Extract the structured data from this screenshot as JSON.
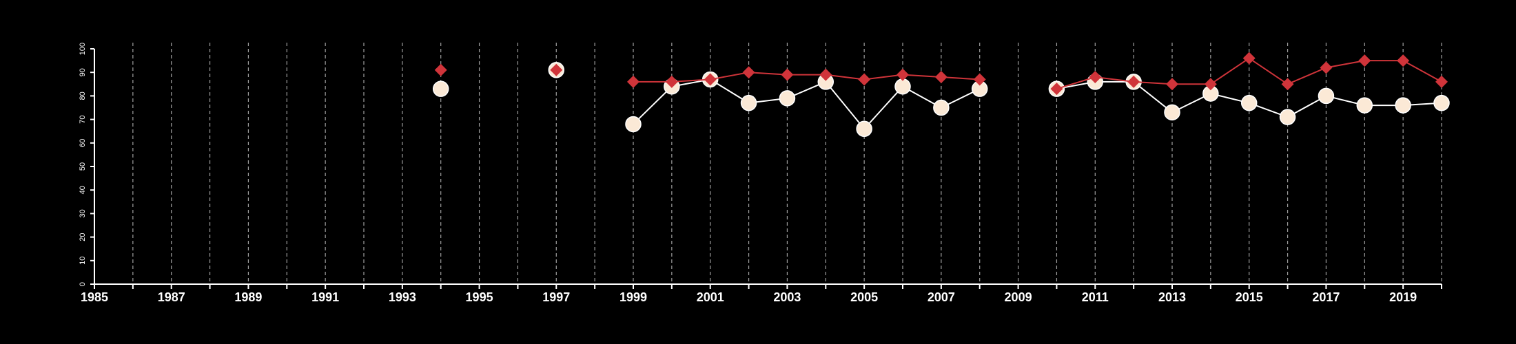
{
  "chart_data": {
    "type": "line",
    "title": "",
    "xlabel": "",
    "ylabel": "",
    "xlim": [
      1985,
      2020
    ],
    "ylim": [
      0,
      100
    ],
    "x_tick_labels": [
      "1985",
      "1987",
      "1989",
      "1991",
      "1993",
      "1995",
      "1997",
      "1999",
      "2001",
      "2003",
      "2005",
      "2007",
      "2009",
      "2011",
      "2013",
      "2015",
      "2017",
      "2019"
    ],
    "y_tick_labels": [
      "0",
      "10",
      "20",
      "30",
      "40",
      "50",
      "60",
      "70",
      "80",
      "90",
      "100"
    ],
    "grid": "vertical dashed lines at each year",
    "legend": "none",
    "x": [
      1994,
      1997,
      1999,
      2000,
      2001,
      2002,
      2003,
      2004,
      2005,
      2006,
      2007,
      2008,
      2010,
      2011,
      2012,
      2013,
      2014,
      2015,
      2016,
      2017,
      2018,
      2019,
      2020
    ],
    "series": [
      {
        "marker": "diamond",
        "color": "#d0343a",
        "values": [
          91,
          91,
          86,
          86,
          87,
          90,
          89,
          89,
          87,
          89,
          88,
          87,
          83,
          88,
          86,
          85,
          85,
          96,
          85,
          92,
          95,
          95,
          86
        ]
      },
      {
        "marker": "circle",
        "color": "#ffffff",
        "marker_fill": "#fbe9d6",
        "values": [
          83,
          91,
          68,
          84,
          87,
          77,
          79,
          86,
          66,
          84,
          75,
          83,
          83,
          86,
          86,
          73,
          81,
          77,
          71,
          80,
          76,
          76,
          77
        ]
      }
    ]
  }
}
